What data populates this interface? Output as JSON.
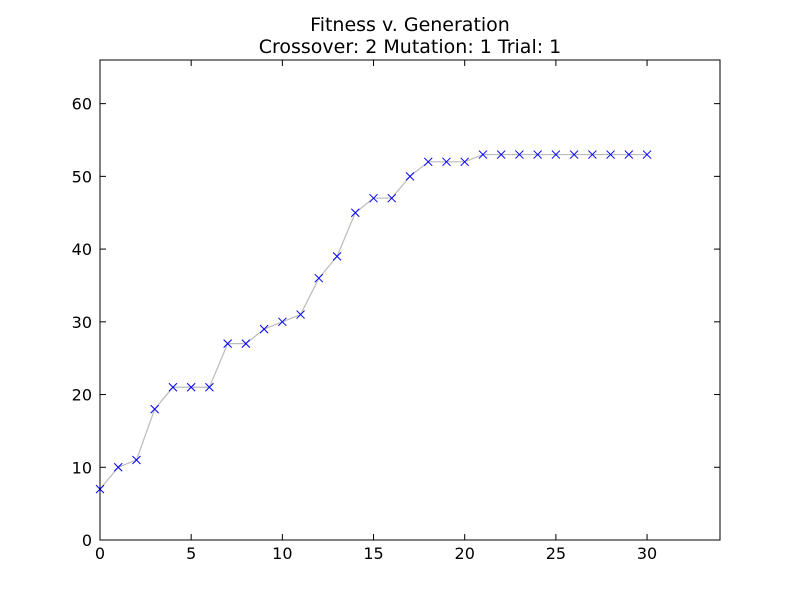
{
  "chart_data": {
    "type": "line",
    "title": "Fitness v. Generation",
    "subtitle": "Crossover: 2 Mutation: 1 Trial: 1",
    "xlabel": "",
    "ylabel": "",
    "xlim": [
      0,
      34
    ],
    "ylim": [
      0,
      66
    ],
    "xticks": [
      0,
      5,
      10,
      15,
      20,
      25,
      30
    ],
    "yticks": [
      0,
      10,
      20,
      30,
      40,
      50,
      60
    ],
    "grid": false,
    "series": [
      {
        "x": [
          0,
          1,
          2,
          3,
          4,
          5,
          6,
          7,
          8,
          9,
          10,
          11,
          12,
          13,
          14,
          15,
          16,
          17,
          18,
          19,
          20,
          21,
          22,
          23,
          24,
          25,
          26,
          27,
          28,
          29,
          30
        ],
        "y": [
          7,
          10,
          11,
          18,
          21,
          21,
          21,
          27,
          27,
          29,
          30,
          31,
          36,
          39,
          45,
          47,
          47,
          50,
          52,
          52,
          52,
          53,
          53,
          53,
          53,
          53,
          53,
          53,
          53,
          53,
          53
        ],
        "line_color": "#bbbbbb",
        "marker": "x",
        "marker_color": "#0000ff"
      }
    ]
  }
}
